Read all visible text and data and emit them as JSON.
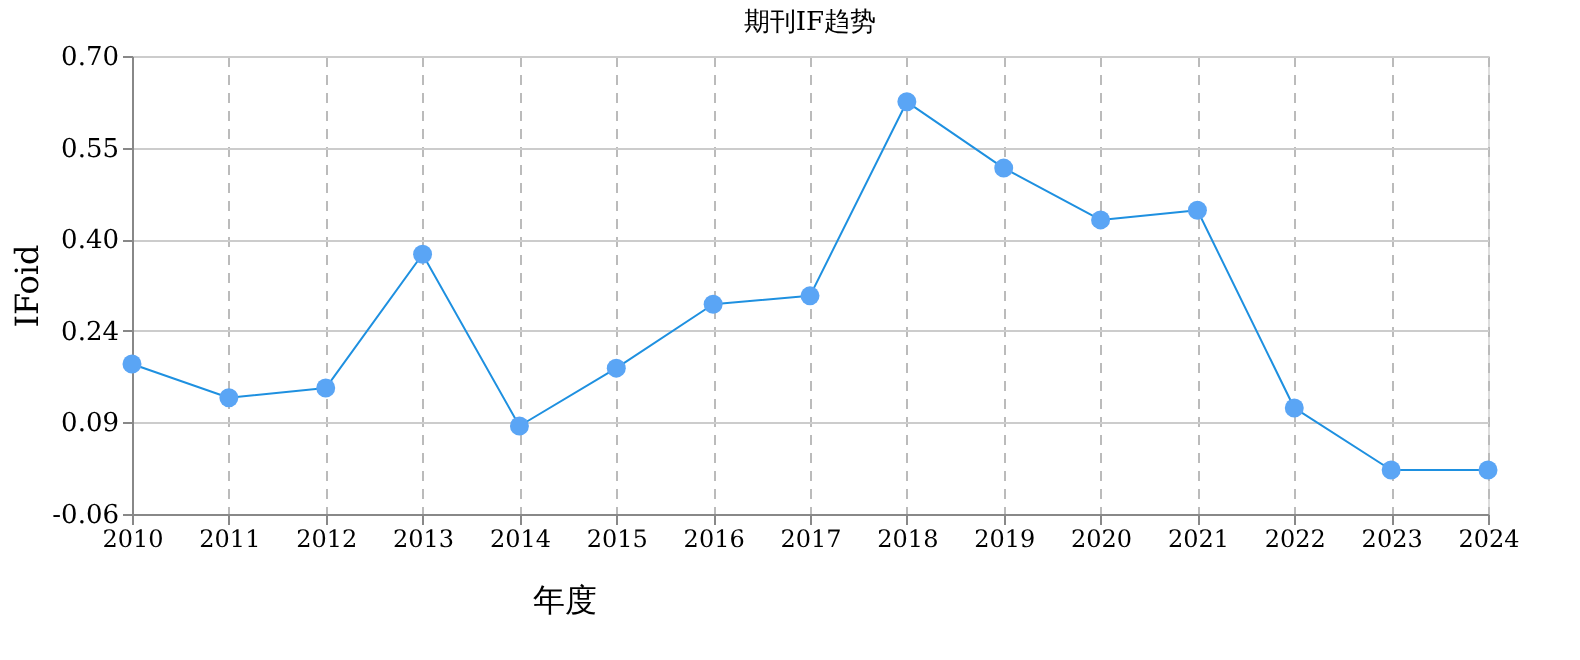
{
  "chart_data": {
    "type": "line",
    "title": "期刊IF趋势",
    "xlabel": "年度",
    "ylabel": "IFoid",
    "categories": [
      "2010",
      "2011",
      "2012",
      "2013",
      "2014",
      "2015",
      "2016",
      "2017",
      "2018",
      "2019",
      "2020",
      "2021",
      "2022",
      "2023",
      "2024"
    ],
    "series": [
      {
        "color": "#1e90e0",
        "values": [
          0.189,
          0.133,
          0.149,
          0.371,
          0.086,
          0.182,
          0.288,
          0.302,
          0.624,
          0.514,
          0.428,
          0.444,
          0.116,
          0.013,
          0.013
        ]
      }
    ],
    "ylim": [
      -0.06,
      0.7
    ],
    "yticks": [
      -0.06,
      {
        "value": 0.092,
        "label": "0.09"
      },
      {
        "value": 0.244,
        "label": "0.24"
      },
      {
        "value": 0.396,
        "label": "0.40"
      },
      {
        "value": 0.548,
        "label": "0.55"
      },
      {
        "value": 0.7,
        "label": "0.70"
      }
    ],
    "grid": true,
    "marker": "circle",
    "line_style": "solid"
  }
}
